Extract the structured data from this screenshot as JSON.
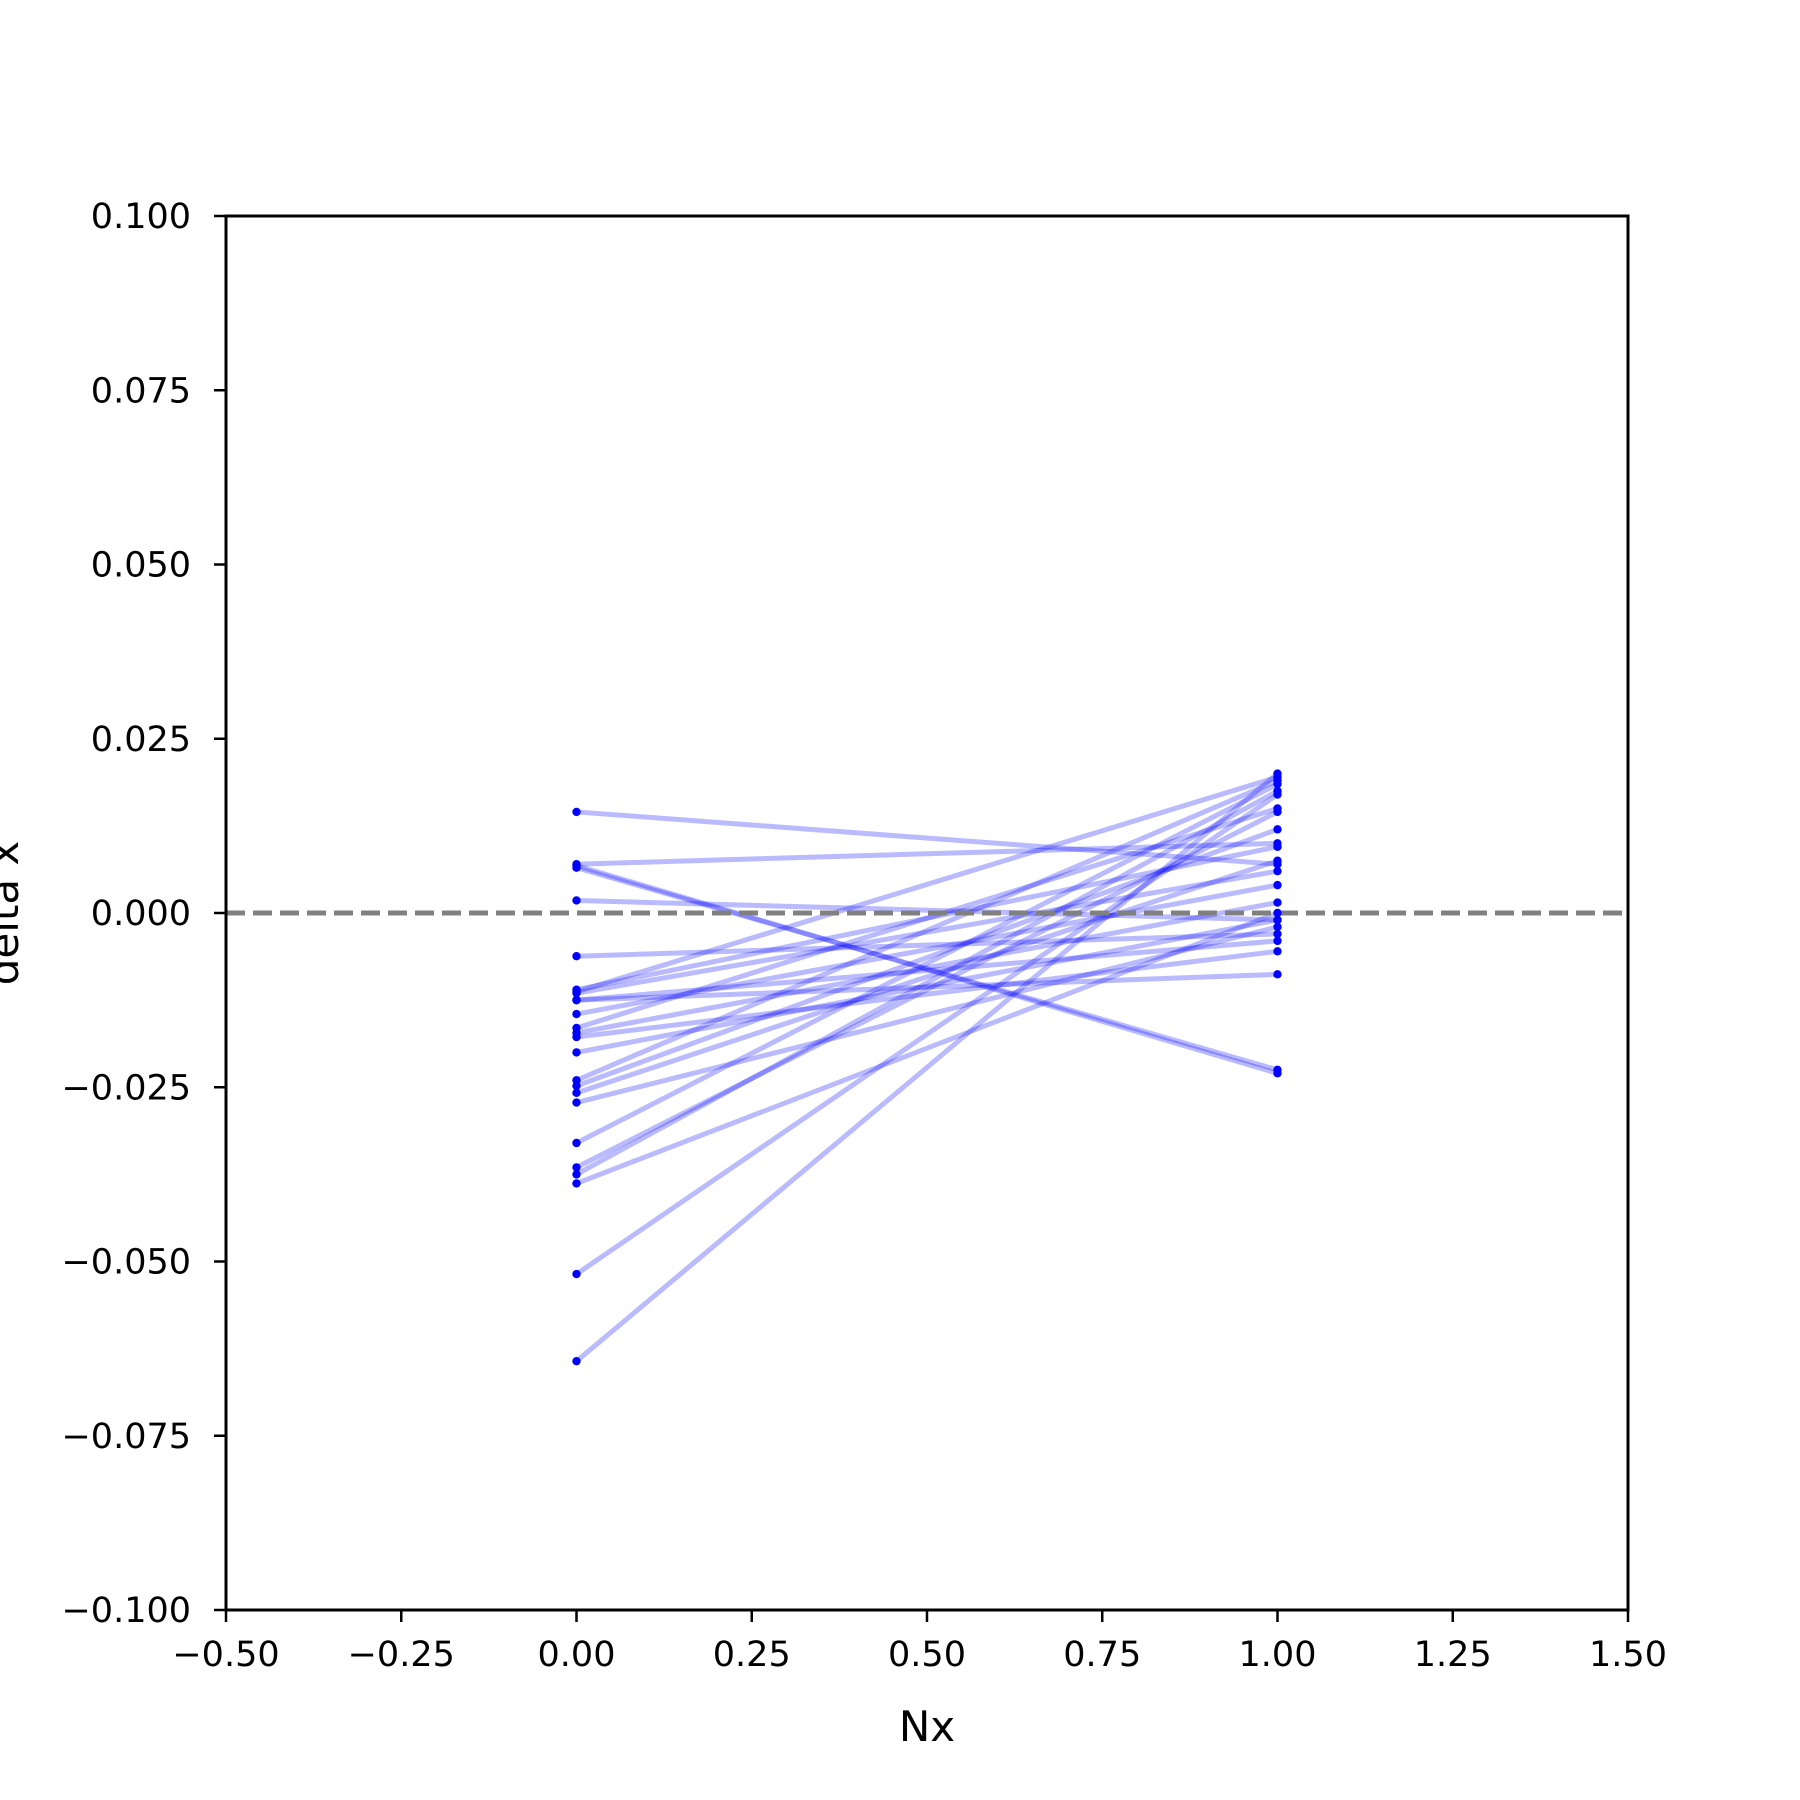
{
  "chart_data": {
    "type": "line",
    "title": "",
    "xlabel": "Nx",
    "ylabel": "delta x",
    "xlim": [
      -0.5,
      1.5
    ],
    "ylim": [
      -0.1,
      0.1
    ],
    "xticks": [
      -0.5,
      -0.25,
      0.0,
      0.25,
      0.5,
      0.75,
      1.0,
      1.25,
      1.5
    ],
    "xtick_labels": [
      "−0.50",
      "−0.25",
      "0.00",
      "0.25",
      "0.50",
      "0.75",
      "1.00",
      "1.25",
      "1.50"
    ],
    "yticks": [
      -0.1,
      -0.075,
      -0.05,
      -0.025,
      0.0,
      0.025,
      0.05,
      0.075,
      0.1
    ],
    "ytick_labels": [
      "−0.100",
      "−0.075",
      "−0.050",
      "−0.025",
      "0.000",
      "0.025",
      "0.050",
      "0.075",
      "0.100"
    ],
    "grid": false,
    "legend": "none",
    "reference_line": {
      "y": 0.0,
      "style": "dashed",
      "color": "#808080"
    },
    "line_color": "#0000ff",
    "line_opacity": 0.27,
    "marker_color": "#0000ff",
    "x": [
      0,
      1
    ],
    "series": [
      {
        "values": [
          0.0145,
          0.007
        ]
      },
      {
        "values": [
          0.007,
          0.01
        ]
      },
      {
        "values": [
          0.0068,
          -0.023
        ]
      },
      {
        "values": [
          0.0065,
          -0.0225
        ]
      },
      {
        "values": [
          0.0018,
          -0.001
        ]
      },
      {
        "values": [
          -0.0062,
          -0.003
        ]
      },
      {
        "values": [
          -0.011,
          0.0095
        ]
      },
      {
        "values": [
          -0.0113,
          0.0195
        ]
      },
      {
        "values": [
          -0.0115,
          0.006
        ]
      },
      {
        "values": [
          -0.0125,
          -0.004
        ]
      },
      {
        "values": [
          -0.0145,
          0.004
        ]
      },
      {
        "values": [
          -0.0165,
          0.015
        ]
      },
      {
        "values": [
          -0.0172,
          0.0015
        ]
      },
      {
        "values": [
          -0.0178,
          -0.0055
        ]
      },
      {
        "values": [
          -0.02,
          -0.001
        ]
      },
      {
        "values": [
          -0.024,
          0.019
        ]
      },
      {
        "values": [
          -0.0248,
          0.012
        ]
      },
      {
        "values": [
          -0.0258,
          0.0075
        ]
      },
      {
        "values": [
          -0.0272,
          -0.002
        ]
      },
      {
        "values": [
          -0.033,
          0.0185
        ]
      },
      {
        "values": [
          -0.0365,
          0.0145
        ]
      },
      {
        "values": [
          -0.0375,
          0.0175
        ]
      },
      {
        "values": [
          -0.0388,
          0.0
        ]
      },
      {
        "values": [
          -0.0518,
          0.017
        ]
      },
      {
        "values": [
          -0.0643,
          0.02
        ]
      },
      {
        "values": [
          -0.0125,
          -0.0088
        ]
      }
    ]
  }
}
